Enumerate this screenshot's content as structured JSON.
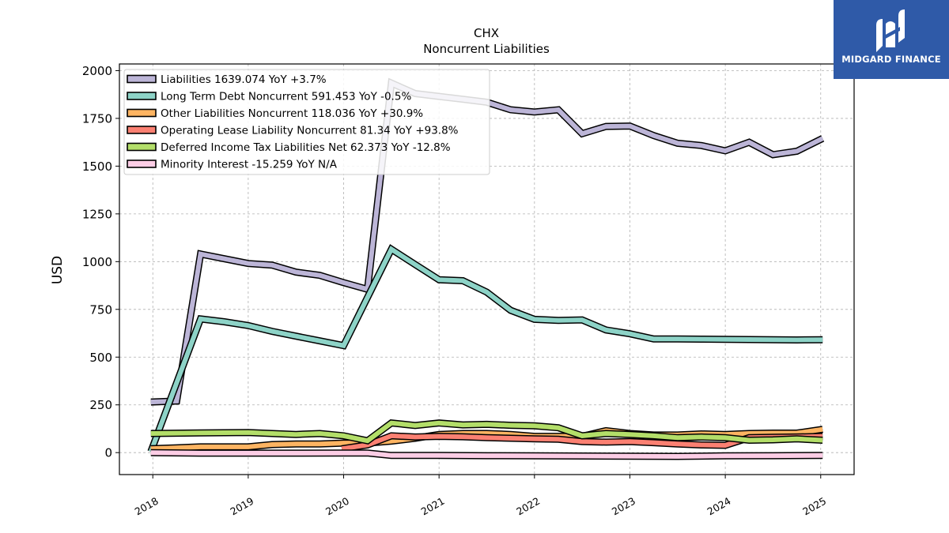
{
  "brand": {
    "name": "MIDGARD FINANCE",
    "color": "#2f5aa8"
  },
  "chart_data": {
    "type": "line",
    "title": "CHX",
    "subtitle": "Noncurrent  Liabilities",
    "ylabel": "USD",
    "xlabel": "",
    "xlim": [
      2017.65,
      2025.35
    ],
    "ylim": [
      -115,
      2035
    ],
    "yticks": [
      0,
      250,
      500,
      750,
      1000,
      1250,
      1500,
      1750,
      2000
    ],
    "xticks": [
      "2018",
      "2019",
      "2020",
      "2021",
      "2022",
      "2023",
      "2024",
      "2025"
    ],
    "grid": true,
    "legend_position": "top-left",
    "series": [
      {
        "name": "Liabilities",
        "legend": "Liabilities  1639.074 YoY +3.7%",
        "color": "#bcb5d7",
        "x": [
          2017.98,
          2018.25,
          2018.5,
          2018.75,
          2019.0,
          2019.25,
          2019.5,
          2019.75,
          2020.0,
          2020.25,
          2020.5,
          2020.75,
          2021.0,
          2021.25,
          2021.5,
          2021.75,
          2022.0,
          2022.25,
          2022.5,
          2022.75,
          2023.0,
          2023.25,
          2023.5,
          2023.75,
          2024.0,
          2024.25,
          2024.5,
          2024.75,
          2025.02
        ],
        "values": [
          265,
          270,
          1040,
          1015,
          990,
          982,
          945,
          928,
          890,
          855,
          1935,
          1880,
          1865,
          1850,
          1835,
          1795,
          1783,
          1795,
          1670,
          1708,
          1710,
          1660,
          1620,
          1608,
          1580,
          1625,
          1560,
          1578,
          1645
        ]
      },
      {
        "name": "Long Term Debt Noncurrent",
        "legend": "Long Term Debt Noncurrent  591.453 YoY -0.5%",
        "color": "#8dd3c7",
        "x": [
          2017.98,
          2018.5,
          2018.75,
          2019.0,
          2019.25,
          2019.5,
          2019.75,
          2020.0,
          2020.5,
          2020.75,
          2021.0,
          2021.25,
          2021.5,
          2021.75,
          2022.0,
          2022.25,
          2022.5,
          2022.75,
          2023.0,
          2023.25,
          2023.5,
          2023.75,
          2024.0,
          2024.25,
          2024.5,
          2024.75,
          2025.02
        ],
        "values": [
          5,
          700,
          685,
          665,
          635,
          610,
          585,
          560,
          1065,
          985,
          905,
          900,
          840,
          745,
          698,
          692,
          695,
          642,
          622,
          595,
          595,
          594,
          593,
          592,
          591,
          590,
          591
        ]
      },
      {
        "name": "Other Liabilities Noncurrent",
        "legend": "Other Liabilities Noncurrent  118.036 YoY +30.9%",
        "color": "#fdb462",
        "x": [
          2017.98,
          2018.25,
          2018.5,
          2018.75,
          2019.0,
          2019.25,
          2019.5,
          2019.75,
          2020.0,
          2020.25,
          2020.5,
          2020.75,
          2021.0,
          2021.25,
          2021.5,
          2021.75,
          2022.0,
          2022.25,
          2022.5,
          2022.75,
          2023.0,
          2023.25,
          2023.5,
          2023.75,
          2024.0,
          2024.25,
          2024.5,
          2024.75,
          2025.02
        ],
        "values": [
          20,
          25,
          30,
          30,
          30,
          42,
          45,
          45,
          50,
          50,
          60,
          75,
          95,
          100,
          100,
          95,
          85,
          85,
          85,
          115,
          100,
          92,
          92,
          98,
          95,
          100,
          102,
          102,
          122
        ]
      },
      {
        "name": "Operating Lease Liability Noncurrent",
        "legend": "Operating Lease Liability Noncurrent  81.34 YoY +93.8%",
        "color": "#fb8072",
        "x": [
          2019.98,
          2020.25,
          2020.5,
          2020.75,
          2021.0,
          2021.25,
          2021.5,
          2021.75,
          2022.0,
          2022.25,
          2022.5,
          2022.75,
          2023.0,
          2023.25,
          2023.5,
          2023.75,
          2024.0,
          2024.25,
          2024.5,
          2024.75,
          2025.02
        ],
        "values": [
          20,
          40,
          88,
          82,
          85,
          83,
          78,
          75,
          72,
          70,
          58,
          55,
          58,
          52,
          45,
          40,
          38,
          78,
          80,
          82,
          85
        ]
      },
      {
        "name": "Deferred Income Tax Liabilities Net",
        "legend": "Deferred Income Tax Liabilities Net  62.373 YoY -12.8%",
        "color": "#b3de69",
        "x": [
          2017.98,
          2018.5,
          2018.75,
          2019.0,
          2019.25,
          2019.5,
          2019.75,
          2020.0,
          2020.25,
          2020.5,
          2020.75,
          2021.0,
          2021.25,
          2021.5,
          2021.75,
          2022.0,
          2022.25,
          2022.5,
          2022.75,
          2023.0,
          2023.25,
          2023.5,
          2023.75,
          2024.0,
          2024.25,
          2024.5,
          2024.75,
          2025.02
        ],
        "values": [
          100,
          103,
          104,
          105,
          100,
          95,
          100,
          88,
          62,
          155,
          142,
          155,
          145,
          148,
          143,
          140,
          130,
          88,
          100,
          95,
          88,
          78,
          82,
          78,
          65,
          67,
          72,
          65
        ]
      },
      {
        "name": "Minority Interest",
        "legend": "Minority Interest  -15.259 YoY N/A",
        "color": "#fccde5",
        "x": [
          2017.98,
          2018.5,
          2019.0,
          2019.5,
          2020.0,
          2020.25,
          2020.5,
          2021.0,
          2021.5,
          2022.0,
          2022.5,
          2023.0,
          2023.5,
          2024.0,
          2024.5,
          2025.02
        ],
        "values": [
          0,
          -3,
          -3,
          -3,
          -2,
          -2,
          -15,
          -15,
          -16,
          -17,
          -18,
          -19,
          -20,
          -17,
          -16,
          -15
        ]
      }
    ]
  }
}
